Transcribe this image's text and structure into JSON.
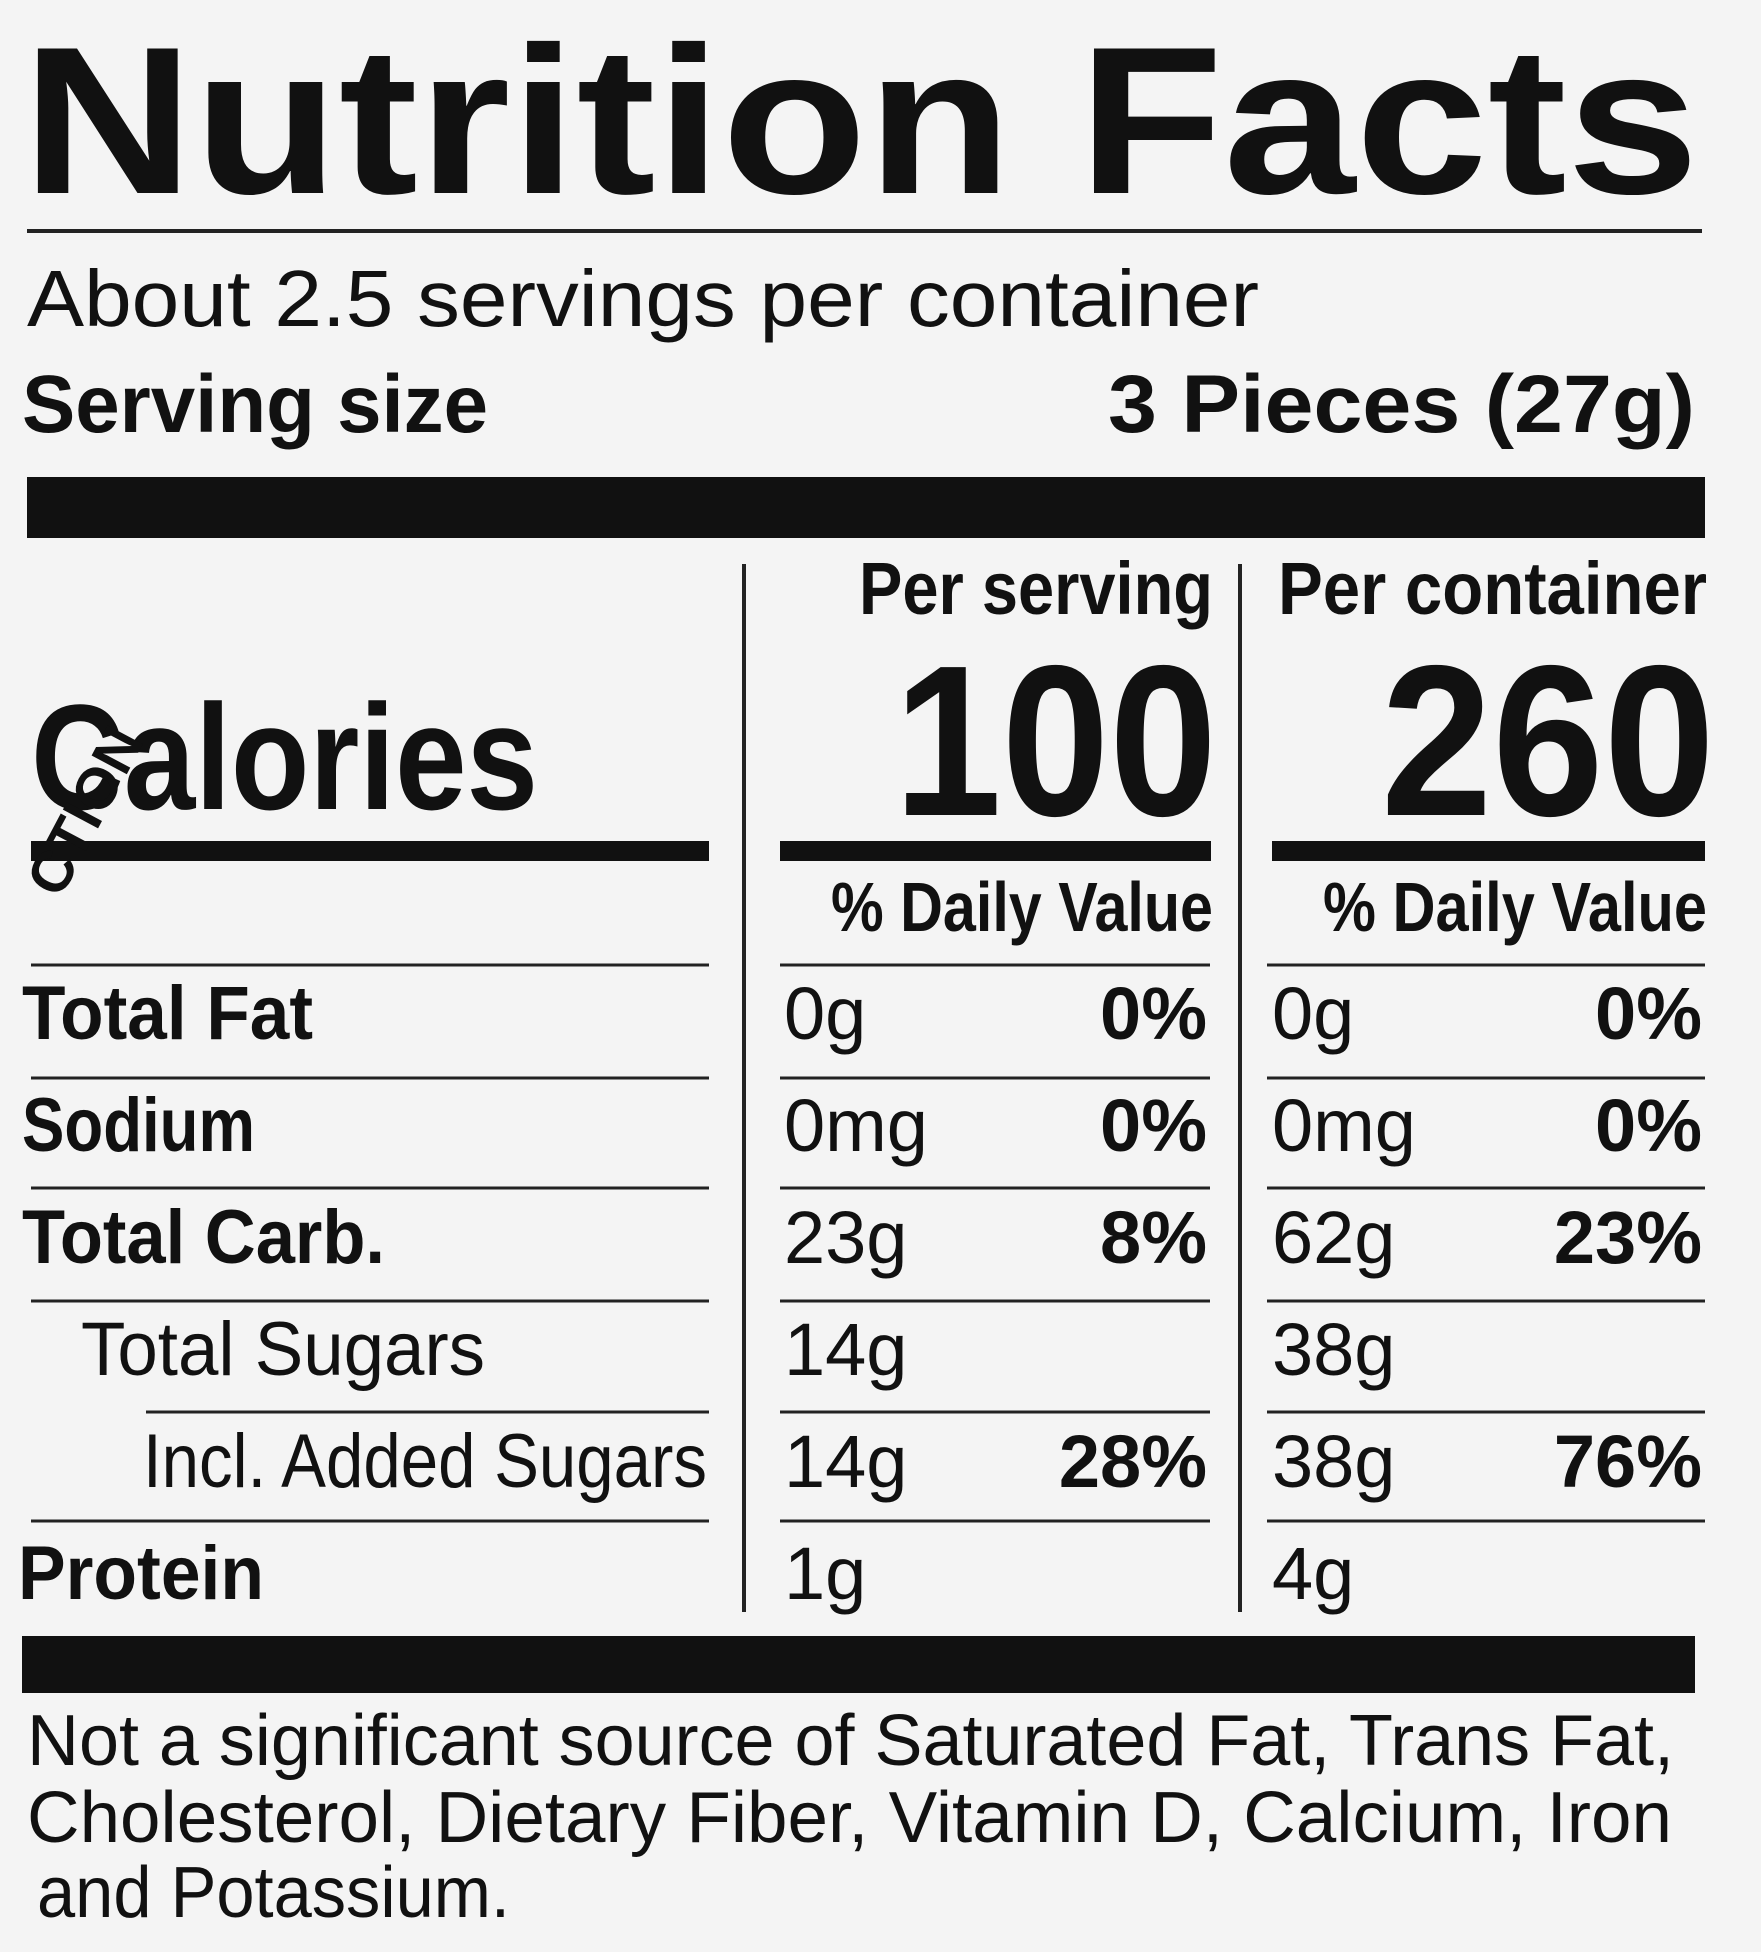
{
  "header": {
    "title": "Nutrition Facts",
    "servings": "About 2.5 servings per container",
    "serving_size_label": "Serving size",
    "serving_size": "3 Pieces (27g)"
  },
  "calories_label": "Calories",
  "columns": [
    {
      "heading": "Per serving",
      "calories": 100,
      "daily_value_heading": "% Daily Value"
    },
    {
      "heading": "Per container",
      "calories": 260,
      "daily_value_heading": "% Daily Value"
    }
  ],
  "rows": [
    {
      "label": "Total Fat",
      "values": [
        [
          "0g",
          "0%"
        ],
        [
          "0g",
          "0%"
        ]
      ]
    },
    {
      "label": "Sodium",
      "values": [
        [
          "0mg",
          "0%"
        ],
        [
          "0mg",
          "0%"
        ]
      ]
    },
    {
      "label": "Total Carb.",
      "values": [
        [
          "23g",
          "8%"
        ],
        [
          "62g",
          "23%"
        ]
      ]
    },
    {
      "label": "Total Sugars",
      "values": [
        [
          "14g"
        ],
        [
          "38g"
        ]
      ]
    },
    {
      "label": "Incl. Added Sugars",
      "values": [
        [
          "14g",
          "28%"
        ],
        [
          "38g",
          "76%"
        ]
      ]
    },
    {
      "label": "Protein",
      "values": [
        [
          "1g"
        ],
        [
          "4g"
        ]
      ]
    }
  ],
  "footnote": [
    "Not a significant source of Saturated Fat, Trans Fat,",
    "Cholesterol, Dietary Fiber, Vitamin D, Calcium, Iron",
    "and Potassium."
  ],
  "sticker_text": "CTION"
}
